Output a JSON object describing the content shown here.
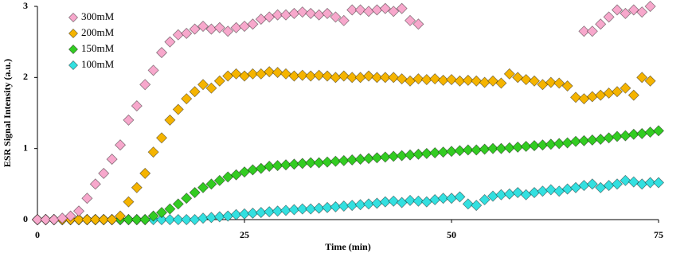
{
  "chart_data": {
    "type": "scatter",
    "x_label": "Time (min)",
    "y_label": "ESR Signal Intensity (a.u.)",
    "xlim": [
      0,
      75
    ],
    "xticks": [
      0,
      25,
      50,
      75
    ],
    "ylim": [
      0,
      3
    ],
    "yticks": [
      0,
      1,
      2,
      3
    ],
    "legend": "top-left",
    "x": [
      0,
      1,
      2,
      3,
      4,
      5,
      6,
      7,
      8,
      9,
      10,
      11,
      12,
      13,
      14,
      15,
      16,
      17,
      18,
      19,
      20,
      21,
      22,
      23,
      24,
      25,
      26,
      27,
      28,
      29,
      30,
      31,
      32,
      33,
      34,
      35,
      36,
      37,
      38,
      39,
      40,
      41,
      42,
      43,
      44,
      45,
      46,
      47,
      48,
      49,
      50,
      51,
      52,
      53,
      54,
      55,
      56,
      57,
      58,
      59,
      60,
      61,
      62,
      63,
      64,
      65,
      66,
      67,
      68,
      69,
      70,
      71,
      72,
      73,
      74,
      75
    ],
    "series": [
      {
        "name": "300mM",
        "color": "#f7a8cc",
        "values": [
          0,
          0,
          0,
          0.02,
          0.05,
          0.12,
          0.3,
          0.5,
          0.65,
          0.85,
          1.05,
          1.4,
          1.6,
          1.9,
          2.1,
          2.35,
          2.5,
          2.6,
          2.62,
          2.68,
          2.72,
          2.68,
          2.7,
          2.65,
          2.7,
          2.72,
          2.75,
          2.82,
          2.85,
          2.88,
          2.88,
          2.9,
          2.92,
          2.9,
          2.88,
          2.9,
          2.85,
          2.8,
          2.95,
          2.95,
          2.93,
          2.95,
          2.97,
          2.93,
          2.97,
          2.8,
          2.75,
          null,
          null,
          null,
          null,
          null,
          null,
          null,
          null,
          null,
          null,
          null,
          null,
          null,
          null,
          null,
          null,
          null,
          null,
          null,
          2.65,
          2.65,
          2.75,
          2.85,
          2.95,
          2.9,
          2.95,
          2.92,
          3.0,
          null
        ]
      },
      {
        "name": "200mM",
        "color": "#f5b400",
        "values": [
          0,
          0,
          0,
          0,
          0,
          0,
          0,
          0,
          0,
          0,
          0.05,
          0.25,
          0.45,
          0.65,
          0.95,
          1.15,
          1.4,
          1.55,
          1.7,
          1.8,
          1.9,
          1.85,
          1.95,
          2.02,
          2.05,
          2.02,
          2.05,
          2.05,
          2.08,
          2.07,
          2.05,
          2.02,
          2.03,
          2.02,
          2.03,
          2.02,
          2.0,
          2.02,
          2.0,
          2.0,
          2.02,
          2.0,
          2.0,
          2.0,
          1.98,
          1.95,
          1.98,
          1.97,
          1.98,
          1.96,
          1.97,
          1.95,
          1.96,
          1.95,
          1.93,
          1.95,
          1.92,
          2.05,
          2.0,
          1.97,
          1.95,
          1.9,
          1.93,
          1.92,
          1.88,
          1.72,
          1.7,
          1.73,
          1.75,
          1.78,
          1.8,
          1.85,
          1.75,
          2.0,
          1.95,
          null
        ]
      },
      {
        "name": "150mM",
        "color": "#33cc22",
        "values": [
          0,
          0,
          0,
          0,
          0,
          0,
          0,
          0,
          0,
          0,
          0,
          0,
          0,
          0,
          0.05,
          0.1,
          0.15,
          0.22,
          0.3,
          0.38,
          0.45,
          0.5,
          0.55,
          0.6,
          0.63,
          0.67,
          0.7,
          0.72,
          0.75,
          0.76,
          0.77,
          0.78,
          0.79,
          0.8,
          0.8,
          0.81,
          0.82,
          0.83,
          0.84,
          0.85,
          0.86,
          0.87,
          0.88,
          0.89,
          0.9,
          0.91,
          0.92,
          0.93,
          0.94,
          0.95,
          0.96,
          0.97,
          0.98,
          0.98,
          0.99,
          1.0,
          1.0,
          1.01,
          1.02,
          1.03,
          1.04,
          1.05,
          1.06,
          1.07,
          1.08,
          1.1,
          1.11,
          1.12,
          1.13,
          1.15,
          1.17,
          1.18,
          1.2,
          1.21,
          1.23,
          1.25
        ]
      },
      {
        "name": "100mM",
        "color": "#33e0e0",
        "values": [
          0,
          0,
          0,
          0,
          0,
          0,
          0,
          0,
          0,
          0,
          0,
          0,
          0,
          0,
          0,
          0,
          0,
          0,
          0,
          0,
          0.02,
          0.03,
          0.04,
          0.05,
          0.07,
          0.08,
          0.09,
          0.1,
          0.11,
          0.12,
          0.13,
          0.14,
          0.15,
          0.15,
          0.16,
          0.17,
          0.18,
          0.19,
          0.2,
          0.21,
          0.22,
          0.23,
          0.25,
          0.26,
          0.24,
          0.27,
          0.26,
          0.25,
          0.28,
          0.3,
          0.3,
          0.32,
          0.22,
          0.2,
          0.28,
          0.33,
          0.35,
          0.36,
          0.38,
          0.35,
          0.38,
          0.4,
          0.42,
          0.4,
          0.43,
          0.45,
          0.48,
          0.5,
          0.45,
          0.48,
          0.5,
          0.55,
          0.53,
          0.5,
          0.52,
          0.52
        ]
      }
    ]
  }
}
